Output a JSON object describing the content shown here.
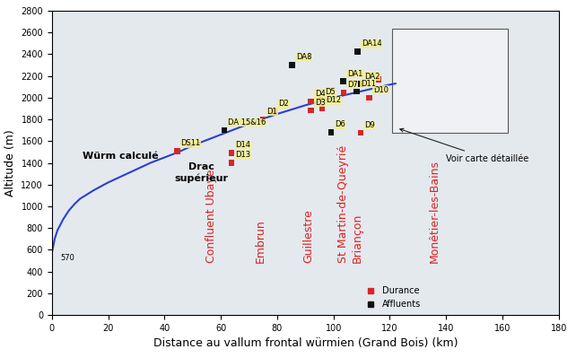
{
  "chart_data": {
    "type": "scatter",
    "x_label": "Distance au vallum frontal würmien (Grand Bois) (km)",
    "y_label": "Altitude (m)",
    "xlim": [
      0,
      180
    ],
    "ylim": [
      0,
      2800
    ],
    "xticks": [
      0,
      20,
      40,
      60,
      80,
      100,
      120,
      140,
      160,
      180
    ],
    "yticks": [
      0,
      200,
      400,
      600,
      800,
      1000,
      1200,
      1400,
      1600,
      1800,
      2000,
      2200,
      2400,
      2600,
      2800
    ],
    "grid": false,
    "legend": "lower right",
    "series": [
      {
        "name": "Würm calculé",
        "type": "line",
        "color": "#2b3fd6",
        "line_style": "solid",
        "label_x": 38,
        "label_y": 1460,
        "x": [
          0,
          1,
          2,
          4,
          6,
          8,
          10,
          15,
          20,
          25,
          30,
          35,
          40,
          45,
          50,
          60,
          70,
          80,
          90,
          100,
          110,
          120,
          122
        ],
        "values": [
          570,
          700,
          780,
          880,
          960,
          1020,
          1070,
          1150,
          1220,
          1280,
          1340,
          1400,
          1450,
          1500,
          1560,
          1660,
          1760,
          1850,
          1930,
          2000,
          2060,
          2120,
          2130
        ]
      },
      {
        "name": "Durance",
        "type": "scatter",
        "color": "#d62728",
        "marker": "square",
        "x": [
          44.5,
          63.8,
          63.8,
          75,
          79,
          92,
          92,
          95.7,
          96,
          103.6,
          112.7,
          109.6,
          116
        ],
        "values": [
          1508,
          1490,
          1400,
          1800,
          1870,
          1967,
          1883,
          1983,
          1905,
          2050,
          2000,
          1675,
          2170
        ],
        "point_labels": [
          "DS11",
          "D14",
          "D13",
          "D1",
          "D2",
          "D4",
          "D3",
          "D5",
          "D12",
          "D7",
          "D10",
          "D9",
          null
        ]
      },
      {
        "name": "Affluents",
        "type": "scatter",
        "color": "#111111",
        "marker": "square",
        "x": [
          61.3,
          85.3,
          108.6,
          99.1,
          103.5,
          109.6,
          108.3
        ],
        "values": [
          1700,
          2300,
          2425,
          1683,
          2150,
          2125,
          2055
        ],
        "point_labels": [
          "DA 15&16",
          "DA8",
          "DA14",
          "D6",
          "DA1",
          "DA2",
          "D11"
        ]
      }
    ],
    "towns": {
      "color": "#e02020",
      "names": [
        "Confluent Ubaye",
        "Embrun",
        "Guillestre",
        "St Martin-de-Queyrié",
        "Briançon",
        "Monêtier-les-Bains"
      ],
      "x": [
        56.5,
        74,
        91,
        103.5,
        108.6,
        136
      ]
    },
    "annotations": [
      {
        "text": "570",
        "x": 3,
        "y": 560
      },
      {
        "text": "Drac\nsupérieur",
        "x": 53,
        "y": 1310
      }
    ],
    "inset_note": {
      "text": "Voir carte détaillée",
      "x": 140,
      "y": 1440
    }
  }
}
